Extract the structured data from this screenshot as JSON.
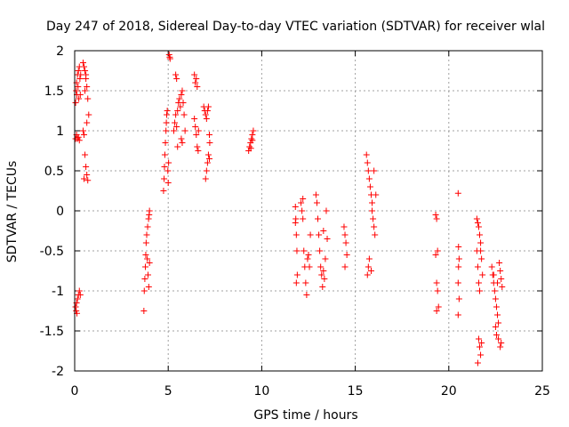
{
  "chart_data": {
    "type": "scatter",
    "title": "Day 247 of 2018, Sidereal Day-to-day VTEC variation (SDTVAR) for receiver wlal",
    "xlabel": "GPS time / hours",
    "ylabel": "SDTVAR / TECUs",
    "xlim": [
      0,
      25
    ],
    "ylim": [
      -2,
      2
    ],
    "xticks": [
      0,
      5,
      10,
      15,
      20,
      25
    ],
    "xtick_labels": [
      "0",
      "5",
      "10",
      "15",
      "20",
      "25"
    ],
    "yticks": [
      -2,
      -1.5,
      -1,
      -0.5,
      0,
      0.5,
      1,
      1.5,
      2
    ],
    "ytick_labels": [
      "-2",
      "-1.5",
      "-1",
      "-0.5",
      "0",
      "0.5",
      "1",
      "1.5",
      "2"
    ],
    "grid": true,
    "marker": "+",
    "color": "#ff0000",
    "series": [
      {
        "name": "SDTVAR",
        "points": [
          [
            0.05,
            1.35
          ],
          [
            0.08,
            1.5
          ],
          [
            0.1,
            1.6
          ],
          [
            0.12,
            1.45
          ],
          [
            0.15,
            1.7
          ],
          [
            0.18,
            1.55
          ],
          [
            0.2,
            1.75
          ],
          [
            0.22,
            1.4
          ],
          [
            0.25,
            1.8
          ],
          [
            0.28,
            1.65
          ],
          [
            0.3,
            1.45
          ],
          [
            0.32,
            1.7
          ],
          [
            0.05,
            0.9
          ],
          [
            0.1,
            0.95
          ],
          [
            0.15,
            0.9
          ],
          [
            0.2,
            0.92
          ],
          [
            0.25,
            0.88
          ],
          [
            0.05,
            -1.2
          ],
          [
            0.08,
            -1.25
          ],
          [
            0.1,
            -1.15
          ],
          [
            0.12,
            -1.28
          ],
          [
            0.15,
            -1.1
          ],
          [
            0.2,
            -1.05
          ],
          [
            0.25,
            -1.0
          ],
          [
            0.3,
            -1.05
          ],
          [
            0.45,
            1.85
          ],
          [
            0.5,
            1.8
          ],
          [
            0.55,
            1.75
          ],
          [
            0.6,
            1.65
          ],
          [
            0.65,
            1.55
          ],
          [
            0.7,
            1.4
          ],
          [
            0.75,
            1.2
          ],
          [
            0.45,
            1.0
          ],
          [
            0.5,
            0.95
          ],
          [
            0.55,
            0.7
          ],
          [
            0.6,
            0.55
          ],
          [
            0.65,
            0.45
          ],
          [
            0.7,
            0.38
          ],
          [
            0.5,
            0.4
          ],
          [
            0.55,
            1.5
          ],
          [
            0.6,
            1.7
          ],
          [
            0.65,
            1.1
          ],
          [
            3.7,
            -1.25
          ],
          [
            3.72,
            -1.0
          ],
          [
            3.75,
            -0.85
          ],
          [
            3.78,
            -0.7
          ],
          [
            3.8,
            -0.55
          ],
          [
            3.82,
            -0.4
          ],
          [
            3.85,
            -0.3
          ],
          [
            3.9,
            -0.2
          ],
          [
            3.95,
            -0.1
          ],
          [
            3.98,
            -0.05
          ],
          [
            4.0,
            0.0
          ],
          [
            3.88,
            -0.6
          ],
          [
            3.92,
            -0.8
          ],
          [
            3.96,
            -0.95
          ],
          [
            4.0,
            -0.65
          ],
          [
            4.75,
            0.25
          ],
          [
            4.78,
            0.4
          ],
          [
            4.8,
            0.55
          ],
          [
            4.82,
            0.7
          ],
          [
            4.85,
            0.85
          ],
          [
            4.88,
            1.0
          ],
          [
            4.9,
            1.1
          ],
          [
            4.92,
            1.2
          ],
          [
            4.95,
            1.25
          ],
          [
            4.98,
            0.5
          ],
          [
            5.0,
            0.35
          ],
          [
            5.02,
            0.6
          ],
          [
            5.05,
            1.95
          ],
          [
            5.08,
            1.92
          ],
          [
            5.1,
            1.9
          ],
          [
            5.3,
            1.0
          ],
          [
            5.35,
            1.1
          ],
          [
            5.4,
            1.2
          ],
          [
            5.45,
            1.05
          ],
          [
            5.5,
            1.25
          ],
          [
            5.55,
            1.35
          ],
          [
            5.6,
            1.4
          ],
          [
            5.65,
            1.3
          ],
          [
            5.7,
            1.45
          ],
          [
            5.75,
            1.5
          ],
          [
            5.8,
            1.35
          ],
          [
            5.85,
            1.2
          ],
          [
            5.9,
            1.0
          ],
          [
            5.7,
            0.9
          ],
          [
            5.75,
            0.85
          ],
          [
            5.5,
            0.8
          ],
          [
            5.4,
            1.7
          ],
          [
            5.45,
            1.65
          ],
          [
            6.4,
            1.7
          ],
          [
            6.45,
            1.6
          ],
          [
            6.5,
            1.65
          ],
          [
            6.55,
            1.55
          ],
          [
            6.4,
            1.15
          ],
          [
            6.45,
            1.05
          ],
          [
            6.5,
            0.95
          ],
          [
            6.55,
            0.8
          ],
          [
            6.6,
            0.75
          ],
          [
            6.62,
            1.0
          ],
          [
            6.9,
            1.3
          ],
          [
            6.95,
            1.25
          ],
          [
            7.0,
            1.2
          ],
          [
            7.05,
            1.15
          ],
          [
            7.1,
            1.25
          ],
          [
            7.15,
            1.3
          ],
          [
            7.2,
            0.95
          ],
          [
            7.22,
            0.85
          ],
          [
            7.1,
            0.6
          ],
          [
            7.05,
            0.5
          ],
          [
            7.0,
            0.4
          ],
          [
            7.15,
            0.7
          ],
          [
            7.2,
            0.65
          ],
          [
            9.3,
            0.75
          ],
          [
            9.35,
            0.8
          ],
          [
            9.4,
            0.85
          ],
          [
            9.45,
            0.9
          ],
          [
            9.5,
            0.95
          ],
          [
            9.55,
            1.0
          ],
          [
            9.42,
            0.78
          ],
          [
            9.5,
            0.88
          ],
          [
            11.8,
            0.05
          ],
          [
            11.82,
            -0.1
          ],
          [
            11.85,
            -0.3
          ],
          [
            11.88,
            -0.5
          ],
          [
            11.9,
            -0.8
          ],
          [
            11.85,
            -0.9
          ],
          [
            11.8,
            -0.15
          ],
          [
            12.1,
            0.1
          ],
          [
            12.15,
            0.0
          ],
          [
            12.2,
            -0.1
          ],
          [
            12.25,
            -0.5
          ],
          [
            12.3,
            -0.7
          ],
          [
            12.35,
            -0.9
          ],
          [
            12.4,
            -1.05
          ],
          [
            12.45,
            -0.6
          ],
          [
            12.5,
            -0.55
          ],
          [
            12.55,
            -0.7
          ],
          [
            12.6,
            -0.3
          ],
          [
            12.2,
            0.15
          ],
          [
            12.9,
            0.2
          ],
          [
            12.95,
            0.1
          ],
          [
            13.0,
            -0.1
          ],
          [
            13.05,
            -0.3
          ],
          [
            13.1,
            -0.5
          ],
          [
            13.15,
            -0.7
          ],
          [
            13.2,
            -0.8
          ],
          [
            13.25,
            -0.95
          ],
          [
            13.3,
            -0.75
          ],
          [
            13.35,
            -0.85
          ],
          [
            13.4,
            -0.6
          ],
          [
            13.45,
            0.0
          ],
          [
            13.5,
            -0.35
          ],
          [
            13.3,
            -0.25
          ],
          [
            14.4,
            -0.2
          ],
          [
            14.45,
            -0.3
          ],
          [
            14.5,
            -0.4
          ],
          [
            14.55,
            -0.55
          ],
          [
            14.45,
            -0.7
          ],
          [
            15.6,
            0.7
          ],
          [
            15.65,
            0.6
          ],
          [
            15.7,
            0.5
          ],
          [
            15.75,
            0.4
          ],
          [
            15.8,
            0.3
          ],
          [
            15.85,
            0.2
          ],
          [
            15.9,
            0.0
          ],
          [
            15.95,
            -0.1
          ],
          [
            16.0,
            -0.2
          ],
          [
            16.05,
            -0.3
          ],
          [
            15.65,
            -0.8
          ],
          [
            15.7,
            -0.7
          ],
          [
            15.75,
            -0.6
          ],
          [
            15.85,
            -0.75
          ],
          [
            15.9,
            0.1
          ],
          [
            16.0,
            0.5
          ],
          [
            16.1,
            0.2
          ],
          [
            19.3,
            -0.05
          ],
          [
            19.35,
            -0.1
          ],
          [
            19.4,
            -0.5
          ],
          [
            19.3,
            -0.55
          ],
          [
            19.35,
            -0.9
          ],
          [
            19.4,
            -1.0
          ],
          [
            19.45,
            -1.2
          ],
          [
            19.35,
            -1.25
          ],
          [
            20.5,
            0.22
          ],
          [
            20.52,
            -0.45
          ],
          [
            20.55,
            -0.6
          ],
          [
            20.5,
            -0.9
          ],
          [
            20.55,
            -1.1
          ],
          [
            20.5,
            -1.3
          ],
          [
            20.52,
            -0.7
          ],
          [
            21.5,
            -0.1
          ],
          [
            21.55,
            -0.15
          ],
          [
            21.6,
            -0.2
          ],
          [
            21.65,
            -0.3
          ],
          [
            21.7,
            -0.5
          ],
          [
            21.75,
            -0.6
          ],
          [
            21.8,
            -0.8
          ],
          [
            21.5,
            -0.5
          ],
          [
            21.55,
            -0.7
          ],
          [
            21.6,
            -0.9
          ],
          [
            21.65,
            -1.0
          ],
          [
            21.7,
            -0.4
          ],
          [
            21.6,
            -1.6
          ],
          [
            21.65,
            -1.7
          ],
          [
            21.7,
            -1.8
          ],
          [
            21.75,
            -1.65
          ],
          [
            21.55,
            -1.9
          ],
          [
            22.3,
            -0.7
          ],
          [
            22.35,
            -0.8
          ],
          [
            22.4,
            -0.9
          ],
          [
            22.45,
            -1.0
          ],
          [
            22.5,
            -1.1
          ],
          [
            22.55,
            -1.2
          ],
          [
            22.6,
            -1.3
          ],
          [
            22.65,
            -1.4
          ],
          [
            22.7,
            -0.65
          ],
          [
            22.75,
            -0.75
          ],
          [
            22.8,
            -0.85
          ],
          [
            22.85,
            -0.95
          ],
          [
            22.5,
            -1.45
          ],
          [
            22.55,
            -1.55
          ],
          [
            22.65,
            -1.6
          ],
          [
            22.75,
            -1.7
          ],
          [
            22.8,
            -1.65
          ],
          [
            22.4,
            -0.8
          ],
          [
            22.6,
            -0.9
          ]
        ]
      }
    ]
  }
}
